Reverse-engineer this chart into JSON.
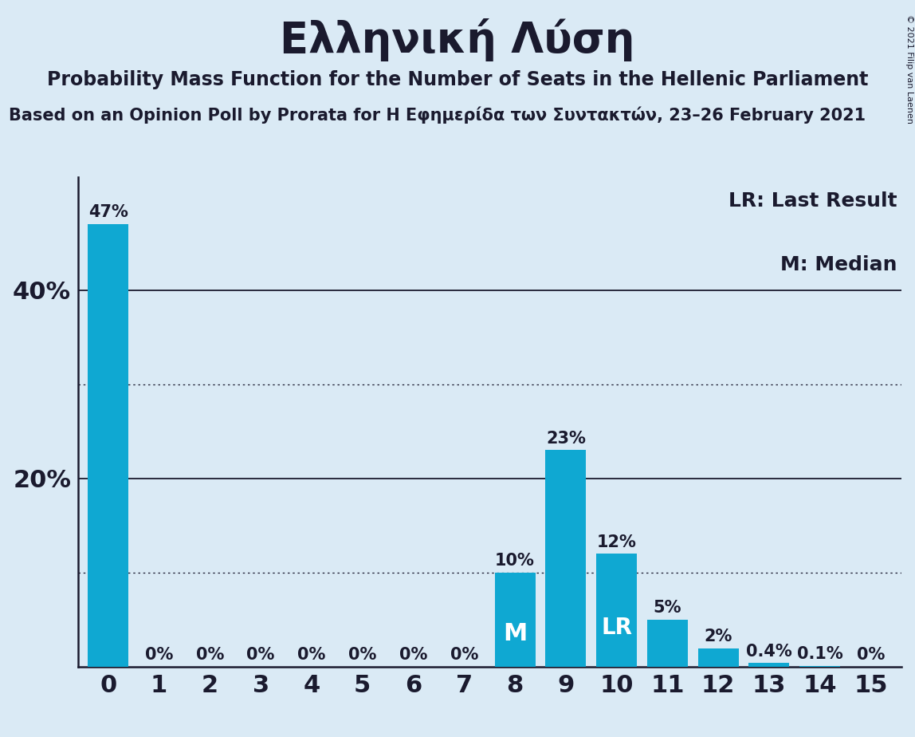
{
  "title": "Ελληνική Λύση",
  "subtitle": "Probability Mass Function for the Number of Seats in the Hellenic Parliament",
  "source_line": "Based on an Opinion Poll by Prorata for Η Εφημερίδα των Συντακτών, 23–26 February 2021",
  "copyright": "© 2021 Filip van Laenen",
  "categories": [
    0,
    1,
    2,
    3,
    4,
    5,
    6,
    7,
    8,
    9,
    10,
    11,
    12,
    13,
    14,
    15
  ],
  "values": [
    47,
    0,
    0,
    0,
    0,
    0,
    0,
    0,
    10,
    23,
    12,
    5,
    2,
    0.4,
    0.1,
    0
  ],
  "labels": [
    "47%",
    "0%",
    "0%",
    "0%",
    "0%",
    "0%",
    "0%",
    "0%",
    "10%",
    "23%",
    "12%",
    "5%",
    "2%",
    "0.4%",
    "0.1%",
    "0%"
  ],
  "bar_color": "#0fa8d2",
  "background_color": "#daeaf5",
  "text_color": "#1a1a2e",
  "median_bar": 8,
  "lr_bar": 10,
  "legend_line1": "LR: Last Result",
  "legend_line2": "M: Median",
  "ylim_max": 52,
  "solid_gridlines": [
    20,
    40
  ],
  "dotted_gridlines": [
    10,
    30
  ],
  "title_fontsize": 38,
  "subtitle_fontsize": 17,
  "source_fontsize": 15,
  "bar_label_fontsize": 15,
  "axis_tick_fontsize": 22,
  "legend_fontsize": 18,
  "copyright_fontsize": 8
}
